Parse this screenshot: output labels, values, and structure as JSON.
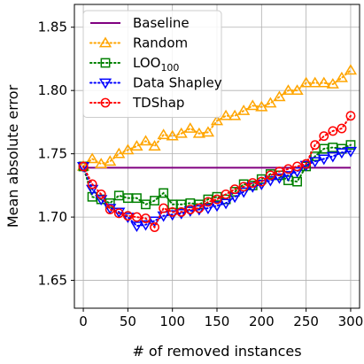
{
  "chart_data": {
    "type": "line",
    "xlabel": "# of removed instances",
    "ylabel": "Mean absolute error",
    "xlim": [
      -10,
      310
    ],
    "ylim": [
      1.628,
      1.868
    ],
    "xticks": [
      0,
      50,
      100,
      150,
      200,
      250,
      300
    ],
    "yticks": [
      1.65,
      1.7,
      1.75,
      1.8,
      1.85
    ],
    "grid": true,
    "legend_position": "top-left",
    "series": [
      {
        "name": "Baseline",
        "style": "solid",
        "marker": "none",
        "color": "#800080",
        "x": [
          0,
          300
        ],
        "y": [
          1.739,
          1.739
        ]
      },
      {
        "name": "Random",
        "style": "dotted",
        "marker": "triangle-up",
        "color": "#FFA500",
        "x": [
          0,
          10,
          20,
          30,
          40,
          50,
          60,
          70,
          80,
          90,
          100,
          110,
          120,
          130,
          140,
          150,
          160,
          170,
          180,
          190,
          200,
          210,
          220,
          230,
          240,
          250,
          260,
          270,
          280,
          290,
          300
        ],
        "y": [
          1.74,
          1.746,
          1.742,
          1.744,
          1.75,
          1.753,
          1.756,
          1.76,
          1.756,
          1.765,
          1.764,
          1.766,
          1.77,
          1.766,
          1.767,
          1.776,
          1.78,
          1.78,
          1.784,
          1.788,
          1.787,
          1.79,
          1.795,
          1.8,
          1.8,
          1.806,
          1.806,
          1.806,
          1.805,
          1.81,
          1.816
        ]
      },
      {
        "name": "LOO",
        "name_sub": "100",
        "style": "dotted",
        "marker": "square",
        "color": "#008000",
        "x": [
          0,
          10,
          20,
          30,
          40,
          50,
          60,
          70,
          80,
          90,
          100,
          110,
          120,
          130,
          140,
          150,
          160,
          170,
          180,
          190,
          200,
          210,
          220,
          230,
          240,
          250,
          260,
          270,
          280,
          290,
          300
        ],
        "y": [
          1.74,
          1.716,
          1.714,
          1.711,
          1.717,
          1.715,
          1.715,
          1.71,
          1.713,
          1.719,
          1.71,
          1.71,
          1.711,
          1.71,
          1.714,
          1.716,
          1.714,
          1.72,
          1.726,
          1.725,
          1.73,
          1.734,
          1.733,
          1.729,
          1.728,
          1.74,
          1.748,
          1.754,
          1.755,
          1.754,
          1.757
        ]
      },
      {
        "name": "Data Shapley",
        "style": "dotted",
        "marker": "triangle-down",
        "color": "#0000FF",
        "x": [
          0,
          10,
          20,
          30,
          40,
          50,
          60,
          70,
          80,
          90,
          100,
          110,
          120,
          130,
          140,
          150,
          160,
          170,
          180,
          190,
          200,
          210,
          220,
          230,
          240,
          250,
          260,
          270,
          280,
          290,
          300
        ],
        "y": [
          1.74,
          1.722,
          1.714,
          1.707,
          1.704,
          1.7,
          1.693,
          1.694,
          1.697,
          1.701,
          1.702,
          1.703,
          1.705,
          1.706,
          1.707,
          1.709,
          1.711,
          1.716,
          1.72,
          1.724,
          1.726,
          1.729,
          1.731,
          1.733,
          1.736,
          1.741,
          1.744,
          1.746,
          1.748,
          1.751,
          1.752
        ]
      },
      {
        "name": "TDShap",
        "style": "dotted",
        "marker": "circle",
        "color": "#FF0000",
        "x": [
          0,
          10,
          20,
          30,
          40,
          50,
          60,
          70,
          80,
          90,
          100,
          110,
          120,
          130,
          140,
          150,
          160,
          170,
          180,
          190,
          200,
          210,
          220,
          230,
          240,
          250,
          260,
          270,
          280,
          290,
          300
        ],
        "y": [
          1.74,
          1.726,
          1.718,
          1.706,
          1.703,
          1.701,
          1.7,
          1.699,
          1.692,
          1.707,
          1.704,
          1.704,
          1.706,
          1.707,
          1.712,
          1.714,
          1.718,
          1.722,
          1.724,
          1.727,
          1.728,
          1.733,
          1.736,
          1.738,
          1.74,
          1.742,
          1.757,
          1.764,
          1.768,
          1.77,
          1.78
        ]
      }
    ]
  }
}
